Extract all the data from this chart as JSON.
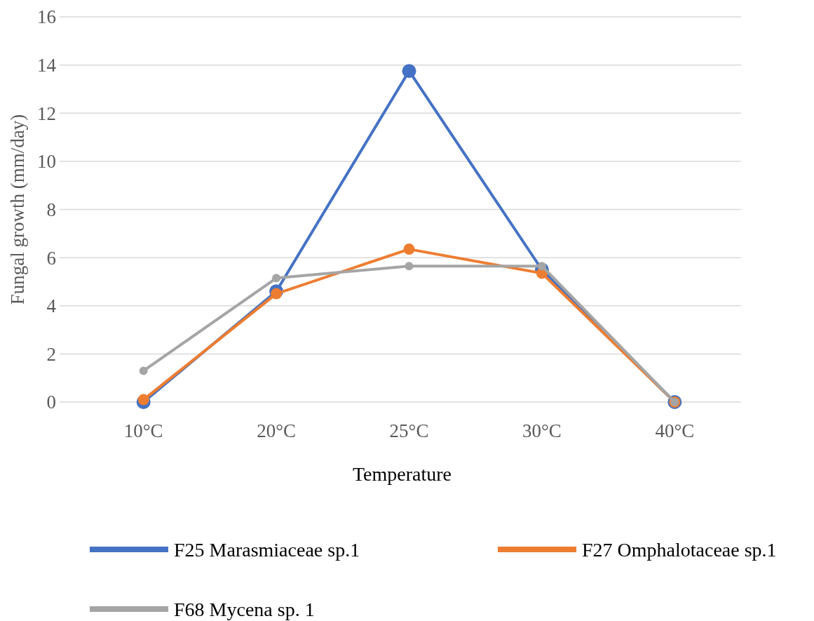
{
  "chart_data": {
    "type": "line",
    "xlabel": "Temperature",
    "ylabel": "Fungal growth (mm/day)",
    "categories": [
      "10°C",
      "20°C",
      "25°C",
      "30°C",
      "40°C"
    ],
    "series": [
      {
        "name": "F25 Marasmiaceae  sp.1",
        "color": "#4472c4",
        "values": [
          0,
          4.6,
          13.75,
          5.5,
          0
        ]
      },
      {
        "name": "F27 Omphalotaceae sp.1",
        "color": "#ed7d31",
        "values": [
          0.1,
          4.5,
          6.35,
          5.35,
          0
        ]
      },
      {
        "name": "F68 Mycena sp. 1",
        "color": "#a5a5a5",
        "values": [
          1.3,
          5.15,
          5.65,
          5.65,
          0
        ]
      }
    ],
    "ylim": [
      0,
      16
    ],
    "yticks": [
      0,
      2,
      4,
      6,
      8,
      10,
      12,
      14,
      16
    ],
    "grid": "y",
    "legend": "bottom",
    "marker": "circle",
    "line_style": "solid"
  }
}
